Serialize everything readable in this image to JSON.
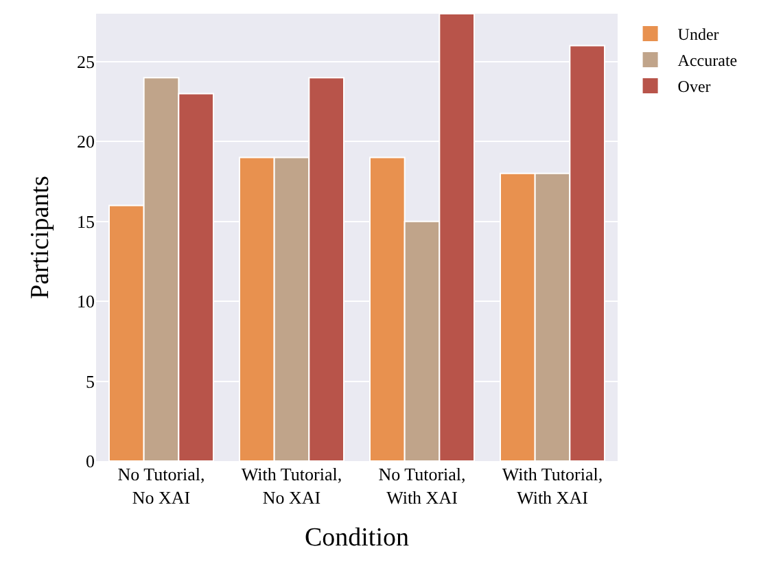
{
  "chart_data": {
    "type": "bar",
    "xlabel": "Condition",
    "ylabel": "Participants",
    "categories": [
      "No Tutorial,\nNo XAI",
      "With Tutorial,\nNo XAI",
      "No Tutorial,\nWith XAI",
      "With Tutorial,\nWith XAI"
    ],
    "series": [
      {
        "name": "Under",
        "color": "#e8914f",
        "values": [
          16,
          19,
          19,
          18
        ]
      },
      {
        "name": "Accurate",
        "color": "#c0a48a",
        "values": [
          24,
          19,
          15,
          18
        ]
      },
      {
        "name": "Over",
        "color": "#b8544a",
        "values": [
          23,
          24,
          28,
          26
        ]
      }
    ],
    "ylim": [
      0,
      28
    ],
    "yticks": [
      0,
      5,
      10,
      15,
      20,
      25
    ],
    "grid": "y",
    "legend": "top right"
  }
}
